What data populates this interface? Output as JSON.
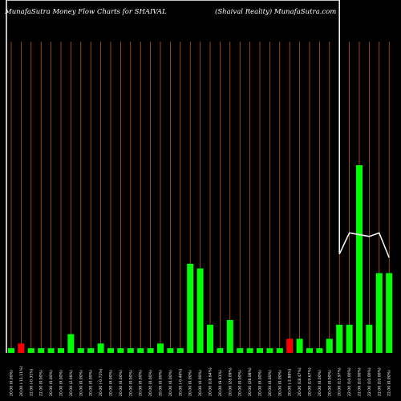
{
  "header": {
    "left_title": "MunafaSutra  Money Flow  Charts for SHAIVAL",
    "right_title": "(Shaival Reality) MunafaSutra.com"
  },
  "chart_data": {
    "type": "bar",
    "title": "MunafaSutra  Money Flow  Charts for SHAIVAL",
    "subtitle": "(Shaival Reality) MunafaSutra.com",
    "categories": [
      "20.00 (0.00%)",
      "20.00 (-11.11%)",
      "22.00 (-0.31%)",
      "22.00 (0.00%)",
      "20.00 (0.00%)",
      "20.00 (0.00%)",
      "20.00 (2.06%)",
      "20.00 (0.00%)",
      "20.00 (0.00%)",
      "20.00 (-0.71%)",
      "20.00 (0.00%)",
      "20.00 (0.00%)",
      "20.00 (0.00%)",
      "20.00 (0.00%)",
      "20.00 (0.00%)",
      "20.00 (0.00%)",
      "20.00 (0.00%)",
      "20.00 (-0.46%)",
      "20.00 (0.00%)",
      "20.00 (0.00%)",
      "20.00 (18.64%)",
      "20.00 (9.91%)",
      "20.00 (26.09%)",
      "20.00 (0.00%)",
      "20.00 (28.08%)",
      "20.00 (0.00%)",
      "20.00 (0.00%)",
      "20.00 (0.00%)",
      "20.00 (-2.88%)",
      "20.00 (18.47%)",
      "20.00 (19.67%)",
      "20.00 (0.00%)",
      "20.00 (0.00%)",
      "20.00 (13.97%)",
      "22.00 (10.00%)",
      "22.00 (10.00%)",
      "22.00 (10.00%)",
      "22.00 (10.00%)",
      "22.00 (0.00%)"
    ],
    "colors": [
      "green",
      "red",
      "green",
      "green",
      "green",
      "green",
      "green",
      "green",
      "green",
      "green",
      "green",
      "green",
      "green",
      "green",
      "green",
      "green",
      "green",
      "green",
      "green",
      "green",
      "green",
      "green",
      "green",
      "green",
      "green",
      "green",
      "green",
      "green",
      "red",
      "green",
      "green",
      "green",
      "green",
      "green",
      "green",
      "green",
      "green",
      "green",
      "green"
    ],
    "values": [
      1,
      2,
      1,
      1,
      1,
      1,
      4,
      1,
      1,
      2,
      1,
      1,
      1,
      1,
      1,
      2,
      1,
      1,
      19,
      18,
      6,
      1,
      7,
      1,
      1,
      1,
      1,
      1,
      3,
      3,
      1,
      1,
      3,
      6,
      6,
      40,
      6,
      17,
      17
    ],
    "price_line": [
      {
        "x": 0,
        "y": 0.0
      },
      {
        "x": 33,
        "y": 0.0
      },
      {
        "x": 33,
        "y": 0.72
      },
      {
        "x": 34,
        "y": 0.66
      },
      {
        "x": 36,
        "y": 0.67
      },
      {
        "x": 37,
        "y": 0.66
      },
      {
        "x": 38,
        "y": 0.73
      }
    ],
    "grid": "vertical",
    "colors_hex": {
      "green": "#00ff00",
      "red": "#ff0000",
      "grid": "#d2691e",
      "background": "#000000",
      "line": "#ffffff"
    }
  }
}
